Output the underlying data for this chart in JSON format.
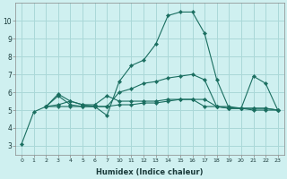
{
  "background_color": "#cff0f0",
  "grid_color": "#aad8d8",
  "line_color": "#1a6e60",
  "marker_color": "#1a6e60",
  "xlabel": "Humidex (Indice chaleur)",
  "ylim": [
    2.5,
    11.0
  ],
  "yticks": [
    3,
    4,
    5,
    6,
    7,
    8,
    9,
    10
  ],
  "x_labels": [
    "0",
    "1",
    "2",
    "3",
    "4",
    "5",
    "6",
    "7",
    "10",
    "11",
    "12",
    "13",
    "14",
    "15",
    "16",
    "17",
    "18",
    "19",
    "20",
    "21",
    "22",
    "23"
  ],
  "x_real": [
    0,
    1,
    2,
    3,
    4,
    5,
    6,
    7,
    10,
    11,
    12,
    13,
    14,
    15,
    16,
    17,
    18,
    19,
    20,
    21,
    22,
    23
  ],
  "series": [
    {
      "x_real": [
        0,
        1,
        2,
        3,
        4,
        5,
        6,
        7,
        10,
        11,
        12,
        13,
        14,
        15,
        16,
        17,
        18,
        19,
        20,
        21,
        22,
        23
      ],
      "y": [
        3.1,
        4.9,
        5.2,
        5.8,
        5.3,
        5.2,
        5.2,
        4.7,
        6.6,
        7.5,
        7.8,
        8.7,
        10.3,
        10.5,
        10.5,
        9.3,
        6.7,
        5.1,
        5.1,
        5.0,
        5.0,
        5.0
      ]
    },
    {
      "x_real": [
        2,
        3,
        4,
        5,
        6,
        7,
        10,
        11,
        12,
        13,
        14,
        15,
        16,
        17,
        18,
        19,
        20,
        21,
        22,
        23
      ],
      "y": [
        5.2,
        5.9,
        5.5,
        5.3,
        5.2,
        5.2,
        6.0,
        6.2,
        6.5,
        6.6,
        6.8,
        6.9,
        7.0,
        6.7,
        5.2,
        5.1,
        5.1,
        6.9,
        6.5,
        5.0
      ]
    },
    {
      "x_real": [
        2,
        3,
        4,
        5,
        6,
        7,
        10,
        11,
        12,
        13,
        14,
        15,
        16,
        17,
        18,
        19,
        20,
        21,
        22,
        23
      ],
      "y": [
        5.2,
        5.2,
        5.2,
        5.2,
        5.2,
        5.2,
        5.3,
        5.3,
        5.4,
        5.4,
        5.5,
        5.6,
        5.6,
        5.6,
        5.2,
        5.2,
        5.1,
        5.1,
        5.1,
        5.0
      ]
    },
    {
      "x_real": [
        2,
        3,
        4,
        5,
        6,
        7,
        10,
        11,
        12,
        13,
        14,
        15,
        16,
        17,
        18,
        19,
        20,
        21,
        22,
        23
      ],
      "y": [
        5.2,
        5.3,
        5.5,
        5.3,
        5.3,
        5.8,
        5.5,
        5.5,
        5.5,
        5.5,
        5.6,
        5.6,
        5.6,
        5.2,
        5.2,
        5.1,
        5.1,
        5.1,
        5.1,
        5.0
      ]
    }
  ]
}
